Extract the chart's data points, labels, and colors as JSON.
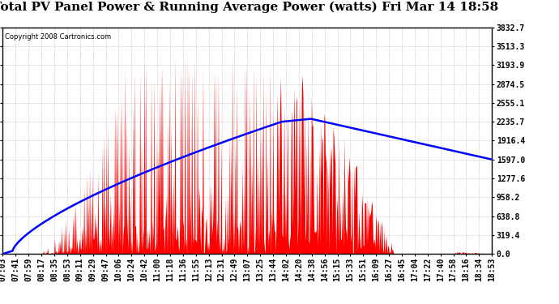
{
  "title": "Total PV Panel Power & Running Average Power (watts) Fri Mar 14 18:58",
  "copyright": "Copyright 2008 Cartronics.com",
  "background_color": "#ffffff",
  "plot_bg_color": "#ffffff",
  "grid_color": "#aaaaaa",
  "bar_color": "#ff0000",
  "line_color": "#0000ff",
  "y_ticks": [
    0.0,
    319.4,
    638.8,
    958.2,
    1277.6,
    1597.0,
    1916.4,
    2235.7,
    2555.1,
    2874.5,
    3193.9,
    3513.3,
    3832.7
  ],
  "x_labels": [
    "07:03",
    "07:41",
    "07:59",
    "08:17",
    "08:35",
    "08:53",
    "09:11",
    "09:29",
    "09:47",
    "10:06",
    "10:24",
    "10:42",
    "11:00",
    "11:18",
    "11:36",
    "11:55",
    "12:13",
    "12:31",
    "12:49",
    "13:07",
    "13:25",
    "13:44",
    "14:02",
    "14:20",
    "14:38",
    "14:56",
    "15:15",
    "15:33",
    "15:51",
    "16:09",
    "16:27",
    "16:45",
    "17:04",
    "17:22",
    "17:40",
    "17:58",
    "18:16",
    "18:34",
    "18:53"
  ],
  "ymax": 3832.7,
  "ymin": 0.0,
  "title_fontsize": 11,
  "copyright_fontsize": 6,
  "tick_fontsize": 7
}
